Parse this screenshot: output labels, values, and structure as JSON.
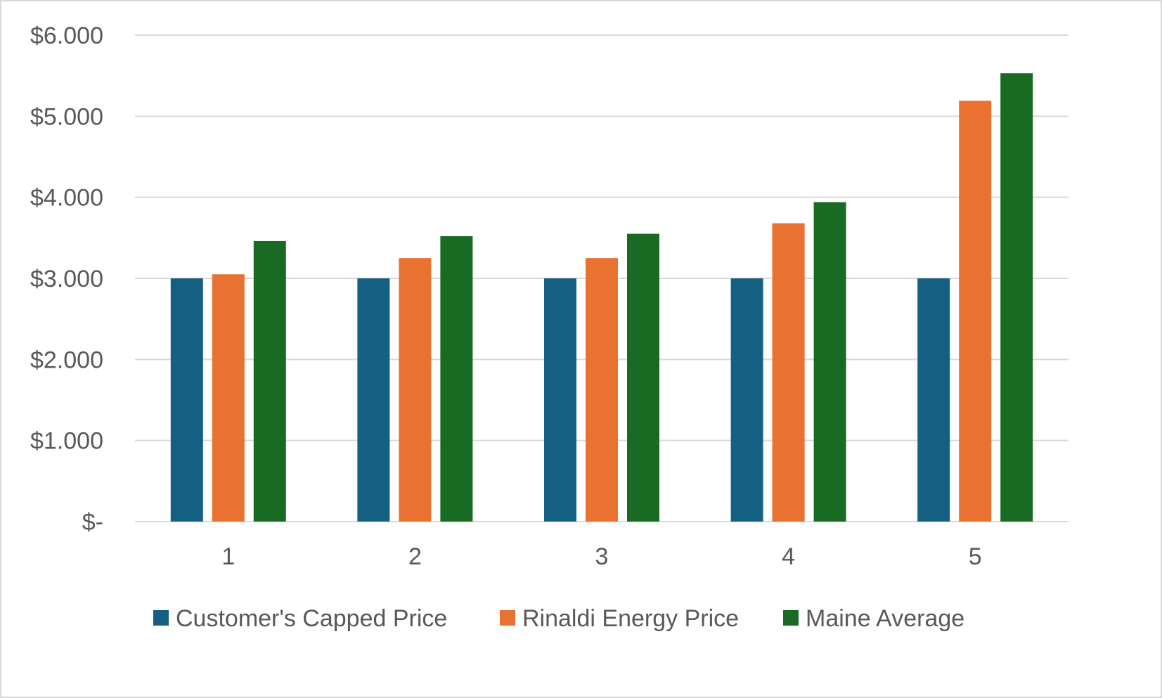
{
  "chart_data": {
    "type": "bar",
    "title": "",
    "xlabel": "",
    "ylabel": "",
    "categories": [
      "1",
      "2",
      "3",
      "4",
      "5"
    ],
    "ylim": [
      0,
      6
    ],
    "yticks": [
      0,
      1,
      2,
      3,
      4,
      5,
      6
    ],
    "ytick_labels": [
      "$-",
      "$1.000",
      "$2.000",
      "$3.000",
      "$4.000",
      "$5.000",
      "$6.000"
    ],
    "grid": true,
    "legend_position": "bottom",
    "series": [
      {
        "name": "Customer's Capped Price",
        "color": "#156082",
        "values": [
          3.0,
          3.0,
          3.0,
          3.0,
          3.0
        ]
      },
      {
        "name": "Rinaldi Energy Price",
        "color": "#E97132",
        "values": [
          3.05,
          3.25,
          3.25,
          3.68,
          5.19
        ]
      },
      {
        "name": "Maine Average",
        "color": "#196B24",
        "values": [
          3.46,
          3.52,
          3.55,
          3.94,
          5.53
        ]
      }
    ]
  }
}
